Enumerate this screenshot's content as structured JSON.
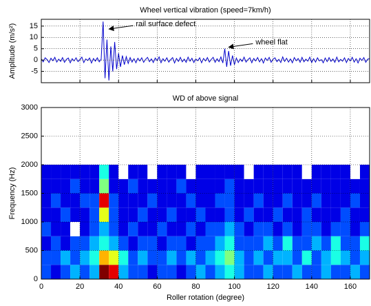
{
  "chart_data": [
    {
      "type": "line",
      "title": "Wheel vertical vibration (speed=7km/h)",
      "ylabel": "Amplitude (m/s²)",
      "color": "#0000cc",
      "grid": true,
      "xlim": [
        0,
        170
      ],
      "ylim": [
        -10,
        18
      ],
      "xticks": [
        0,
        20,
        40,
        60,
        80,
        100,
        120,
        140,
        160
      ],
      "yticks": [
        -5,
        0,
        5,
        10,
        15
      ],
      "x": [
        0,
        1,
        2,
        3,
        4,
        5,
        6,
        7,
        8,
        9,
        10,
        11,
        12,
        13,
        14,
        15,
        16,
        17,
        18,
        19,
        20,
        21,
        22,
        23,
        24,
        25,
        26,
        27,
        28,
        29,
        30,
        31,
        32,
        33,
        34,
        35,
        36,
        37,
        38,
        39,
        40,
        41,
        42,
        43,
        44,
        45,
        46,
        47,
        48,
        49,
        50,
        51,
        52,
        53,
        54,
        55,
        56,
        57,
        58,
        59,
        60,
        61,
        62,
        63,
        64,
        65,
        66,
        67,
        68,
        69,
        70,
        71,
        72,
        73,
        74,
        75,
        76,
        77,
        78,
        79,
        80,
        81,
        82,
        83,
        84,
        85,
        86,
        87,
        88,
        89,
        90,
        91,
        92,
        93,
        94,
        95,
        96,
        97,
        98,
        99,
        100,
        101,
        102,
        103,
        104,
        105,
        106,
        107,
        108,
        109,
        110,
        111,
        112,
        113,
        114,
        115,
        116,
        117,
        118,
        119,
        120,
        121,
        122,
        123,
        124,
        125,
        126,
        127,
        128,
        129,
        130,
        131,
        132,
        133,
        134,
        135,
        136,
        137,
        138,
        139,
        140,
        141,
        142,
        143,
        144,
        145,
        146,
        147,
        148,
        149,
        150,
        151,
        152,
        153,
        154,
        155,
        156,
        157,
        158,
        159,
        160,
        161,
        162,
        163,
        164,
        165,
        166,
        167,
        168,
        169,
        170
      ],
      "values": [
        0.5,
        -0.8,
        1.0,
        0.2,
        -1.1,
        0.8,
        -0.3,
        1.2,
        -0.9,
        0.4,
        -0.6,
        1.1,
        -1.0,
        0.3,
        0.9,
        -1.2,
        0.6,
        -0.4,
        1.0,
        -0.7,
        0.2,
        1.3,
        -1.1,
        0.5,
        -0.2,
        0.9,
        -1.3,
        0.7,
        -0.5,
        1.0,
        -0.8,
        0.4,
        17,
        -8,
        9,
        -9,
        6,
        -5,
        8,
        -4,
        3,
        -3,
        2,
        -2,
        1.5,
        -1.5,
        1.1,
        -0.9,
        0.6,
        -1.2,
        0.8,
        -0.4,
        1.0,
        -1.0,
        0.3,
        1.2,
        -0.7,
        0.5,
        -1.1,
        0.9,
        -0.3,
        1.4,
        -1.2,
        0.6,
        -0.5,
        1.0,
        -0.9,
        0.2,
        1.1,
        -1.3,
        0.7,
        -0.6,
        1.2,
        -0.8,
        0.4,
        -1.0,
        1.3,
        -0.5,
        0.8,
        -1.1,
        0.5,
        -0.3,
        1.0,
        -1.2,
        0.7,
        -0.4,
        1.1,
        -0.9,
        0.3,
        1.2,
        -1.0,
        0.6,
        -0.7,
        1.4,
        -1.3,
        5,
        -3,
        4,
        -2.5,
        2,
        -2,
        0.9,
        -1.1,
        0.5,
        -0.6,
        1.3,
        -0.9,
        0.2,
        1.0,
        -1.2,
        0.7,
        -0.4,
        1.1,
        -0.8,
        0.6,
        -1.3,
        0.9,
        -0.2,
        1.2,
        -1.0,
        0.4,
        1.0,
        -0.7,
        0.3,
        -1.1,
        1.4,
        -0.6,
        0.8,
        -0.9,
        0.5,
        -1.2,
        1.1,
        -0.3,
        0.7,
        -1.0,
        1.2,
        -0.8,
        0.4,
        -0.5,
        1.3,
        -1.1,
        0.6,
        -0.9,
        1.0,
        -0.4,
        0.2,
        -1.2,
        0.9,
        -0.7,
        1.1,
        -0.6,
        0.5,
        -1.0,
        1.3,
        -0.8,
        0.3,
        -0.5,
        1.0,
        -1.1,
        0.7,
        -0.4,
        1.2,
        -0.9,
        0.6,
        -1.3,
        0.8,
        -0.2,
        1.1,
        -1.0,
        0.4,
        0.6
      ],
      "annotations": [
        {
          "text": "rail surface defect",
          "x": 34,
          "y": 14
        },
        {
          "text": "wheel flat",
          "x": 96,
          "y": 6
        }
      ]
    },
    {
      "type": "heatmap",
      "title": "WD of above signal",
      "xlabel": "Roller rotation (degree)",
      "ylabel": "Frequency (Hz)",
      "grid": true,
      "colormap": "jet",
      "xlim": [
        0,
        170
      ],
      "ylim": [
        0,
        3000
      ],
      "xticks": [
        0,
        20,
        40,
        60,
        80,
        100,
        120,
        140,
        160
      ],
      "yticks": [
        0,
        500,
        1000,
        1500,
        2000,
        2500,
        3000
      ],
      "x_bins": [
        0,
        5,
        10,
        15,
        20,
        25,
        30,
        35,
        40,
        45,
        50,
        55,
        60,
        65,
        70,
        75,
        80,
        85,
        90,
        95,
        100,
        105,
        110,
        115,
        120,
        125,
        130,
        135,
        140,
        145,
        150,
        155,
        160,
        165,
        170
      ],
      "y_bins": [
        0,
        250,
        500,
        750,
        1000,
        1250,
        1500,
        1750,
        2000
      ],
      "z": [
        [
          0.2,
          0.1,
          0.2,
          0.3,
          0.2,
          0.3,
          1.0,
          0.9,
          0.3,
          0.2,
          0.2,
          0.1,
          0.2,
          0.2,
          0.1,
          0.2,
          0.3,
          0.2,
          0.3,
          0.4,
          0.3,
          0.2,
          0.2,
          0.3,
          0.2,
          0.2,
          0.3,
          0.2,
          0.2,
          0.3,
          0.2,
          0.2,
          0.3,
          0.2
        ],
        [
          0.2,
          0.2,
          0.3,
          0.2,
          0.3,
          0.4,
          0.7,
          0.6,
          0.4,
          0.2,
          0.3,
          0.2,
          0.2,
          0.3,
          0.2,
          0.3,
          0.2,
          0.3,
          0.4,
          0.5,
          0.3,
          0.2,
          0.3,
          0.2,
          0.3,
          0.3,
          0.2,
          0.4,
          0.2,
          0.3,
          0.4,
          0.3,
          0.2,
          0.3
        ],
        [
          0.1,
          0.2,
          0.1,
          0.2,
          0.2,
          0.3,
          0.4,
          0.3,
          0.2,
          0.1,
          0.2,
          0.2,
          0.1,
          0.2,
          0.2,
          0.1,
          0.2,
          0.2,
          0.3,
          0.4,
          0.2,
          0.2,
          0.2,
          0.3,
          0.2,
          0.4,
          0.2,
          0.2,
          0.3,
          0.2,
          0.4,
          0.2,
          0.2,
          0.4
        ],
        [
          0.2,
          0.1,
          0.1,
          0.0,
          0.1,
          0.2,
          0.3,
          0.2,
          0.1,
          0.2,
          0.1,
          0.1,
          0.2,
          0.1,
          0.1,
          0.2,
          0.1,
          0.2,
          0.2,
          0.3,
          0.2,
          0.1,
          0.2,
          0.2,
          0.1,
          0.2,
          0.1,
          0.2,
          0.2,
          0.1,
          0.2,
          0.2,
          0.1,
          0.2
        ],
        [
          0.1,
          0.1,
          0.2,
          0.1,
          0.1,
          0.2,
          0.6,
          0.2,
          0.1,
          0.1,
          0.2,
          0.1,
          0.1,
          0.2,
          0.1,
          0.1,
          0.2,
          0.1,
          0.1,
          0.2,
          0.1,
          0.2,
          0.1,
          0.1,
          0.2,
          0.1,
          0.1,
          0.2,
          0.1,
          0.1,
          0.1,
          0.2,
          0.1,
          0.1
        ],
        [
          0.1,
          0.2,
          0.1,
          0.1,
          0.2,
          0.2,
          0.9,
          0.2,
          0.1,
          0.1,
          0.1,
          0.2,
          0.1,
          0.1,
          0.1,
          0.2,
          0.1,
          0.1,
          0.2,
          0.2,
          0.1,
          0.1,
          0.2,
          0.1,
          0.1,
          0.2,
          0.1,
          0.1,
          0.2,
          0.1,
          0.1,
          0.1,
          0.2,
          0.1
        ],
        [
          0.1,
          0.1,
          0.1,
          0.2,
          0.1,
          0.1,
          0.5,
          0.1,
          0.1,
          0.2,
          0.1,
          0.1,
          0.1,
          0.1,
          0.2,
          0.1,
          0.1,
          0.1,
          0.1,
          0.2,
          0.1,
          0.1,
          0.1,
          0.1,
          0.1,
          0.1,
          0.1,
          0.1,
          0.1,
          0.1,
          0.1,
          0.1,
          0.1,
          0.1
        ],
        [
          0.1,
          0.1,
          0.1,
          0.1,
          0.1,
          0.1,
          0.4,
          0.1,
          0.0,
          0.1,
          0.1,
          0.0,
          0.1,
          0.1,
          0.1,
          0.0,
          0.1,
          0.1,
          0.1,
          0.1,
          0.1,
          0.0,
          0.1,
          0.1,
          0.1,
          0.1,
          0.1,
          0.0,
          0.1,
          0.1,
          0.1,
          0.1,
          0.0,
          0.1
        ]
      ]
    }
  ]
}
